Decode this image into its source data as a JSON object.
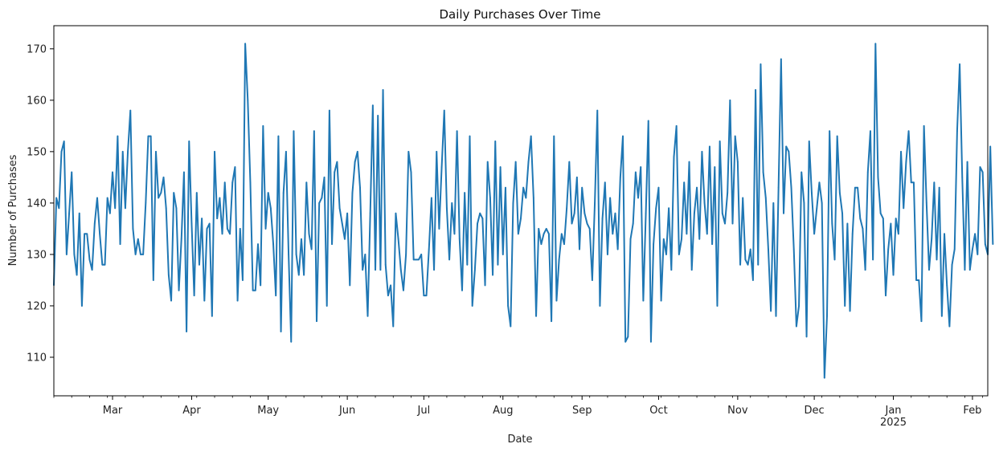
{
  "chart_data": {
    "type": "line",
    "title": "Daily Purchases Over Time",
    "xlabel": "Date",
    "ylabel": "Number of Purchases",
    "ylim": [
      102.5,
      174.5
    ],
    "y_ticks": [
      110,
      120,
      130,
      140,
      150,
      160,
      170
    ],
    "x_range": [
      "2024-02-07",
      "2025-02-07"
    ],
    "x_ticks": [
      {
        "date": "2024-03-01",
        "label": "Mar"
      },
      {
        "date": "2024-04-01",
        "label": "Apr"
      },
      {
        "date": "2024-05-01",
        "label": "May"
      },
      {
        "date": "2024-06-01",
        "label": "Jun"
      },
      {
        "date": "2024-07-01",
        "label": "Jul"
      },
      {
        "date": "2024-08-01",
        "label": "Aug"
      },
      {
        "date": "2024-09-01",
        "label": "Sep"
      },
      {
        "date": "2024-10-01",
        "label": "Oct"
      },
      {
        "date": "2024-11-01",
        "label": "Nov"
      },
      {
        "date": "2024-12-01",
        "label": "Dec"
      },
      {
        "date": "2025-01-01",
        "label": "Jan",
        "sublabel": "2025"
      },
      {
        "date": "2025-02-01",
        "label": "Feb"
      }
    ],
    "grid": false,
    "line_color": "#1f77b4",
    "series": [
      {
        "x_start": "2024-02-07",
        "x_step_days": 1,
        "values": [
          124,
          141,
          139,
          150,
          152,
          130,
          138,
          146,
          130,
          126,
          138,
          120,
          134,
          134,
          129,
          127,
          136,
          141,
          134,
          128,
          128,
          141,
          138,
          146,
          139,
          153,
          132,
          150,
          139,
          150,
          158,
          135,
          130,
          133,
          130,
          130,
          140,
          153,
          153,
          125,
          150,
          141,
          142,
          145,
          139,
          126,
          121,
          142,
          139,
          123,
          133,
          146,
          115,
          152,
          136,
          122,
          142,
          128,
          137,
          121,
          135,
          136,
          118,
          150,
          137,
          141,
          134,
          144,
          135,
          134,
          144,
          147,
          121,
          135,
          125,
          171,
          160,
          144,
          123,
          123,
          132,
          124,
          155,
          135,
          142,
          139,
          132,
          122,
          153,
          115,
          142,
          150,
          130,
          113,
          154,
          130,
          126,
          133,
          126,
          144,
          134,
          131,
          154,
          117,
          140,
          141,
          145,
          120,
          158,
          132,
          146,
          148,
          139,
          136,
          133,
          138,
          124,
          142,
          148,
          150,
          143,
          127,
          130,
          118,
          138,
          159,
          127,
          157,
          127,
          162,
          128,
          122,
          124,
          116,
          138,
          133,
          127,
          123,
          130,
          150,
          146,
          129,
          129,
          129,
          130,
          122,
          122,
          131,
          141,
          127,
          150,
          135,
          147,
          158,
          139,
          129,
          140,
          134,
          154,
          133,
          123,
          142,
          128,
          153,
          120,
          127,
          136,
          138,
          137,
          124,
          148,
          141,
          126,
          152,
          128,
          147,
          130,
          143,
          120,
          116,
          140,
          148,
          134,
          137,
          143,
          141,
          148,
          153,
          141,
          118,
          135,
          132,
          134,
          135,
          134,
          117,
          153,
          121,
          129,
          134,
          132,
          139,
          148,
          136,
          138,
          145,
          131,
          143,
          138,
          136,
          135,
          125,
          140,
          158,
          120,
          137,
          144,
          130,
          141,
          134,
          138,
          131,
          145,
          153,
          113,
          114,
          133,
          136,
          146,
          141,
          147,
          121,
          138,
          156,
          113,
          132,
          139,
          143,
          121,
          133,
          130,
          139,
          127,
          149,
          155,
          130,
          133,
          144,
          134,
          148,
          127,
          138,
          143,
          133,
          150,
          140,
          134,
          151,
          132,
          147,
          120,
          152,
          138,
          136,
          142,
          160,
          136,
          153,
          148,
          128,
          141,
          129,
          128,
          131,
          125,
          162,
          128,
          167,
          146,
          141,
          131,
          119,
          140,
          118,
          143,
          168,
          138,
          151,
          150,
          143,
          131,
          116,
          120,
          146,
          140,
          114,
          152,
          142,
          134,
          139,
          144,
          140,
          106,
          118,
          154,
          136,
          129,
          153,
          142,
          138,
          120,
          136,
          119,
          134,
          143,
          143,
          137,
          135,
          127,
          146,
          154,
          129,
          171,
          145,
          138,
          137,
          122,
          131,
          136,
          126,
          137,
          134,
          150,
          139,
          148,
          154,
          144,
          144,
          125,
          125,
          117,
          155,
          140,
          127,
          133,
          144,
          129,
          143,
          118,
          134,
          124,
          116,
          128,
          131,
          154,
          167,
          145,
          127,
          148,
          127,
          131,
          134,
          130,
          147,
          146,
          132,
          130,
          151,
          132
        ]
      }
    ]
  }
}
